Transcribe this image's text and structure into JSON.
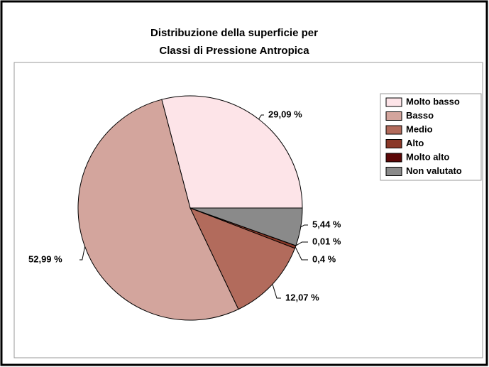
{
  "chart_data": {
    "type": "pie",
    "title": [
      "Distribuzione della superficie per",
      "Classi di Pressione Antropica"
    ],
    "categories": [
      "Molto basso",
      "Basso",
      "Medio",
      "Alto",
      "Molto alto",
      "Non valutato"
    ],
    "values": [
      29.09,
      52.99,
      12.07,
      0.4,
      0.01,
      5.44
    ],
    "value_labels": [
      "29,09 %",
      "52,99 %",
      "12,07 %",
      "0,4 %",
      "0,01 %",
      "5,44 %"
    ],
    "colors": [
      "#fde4e8",
      "#d3a59d",
      "#b26b5c",
      "#8a3828",
      "#5c0808",
      "#8a8a8a"
    ],
    "legend": "right"
  }
}
